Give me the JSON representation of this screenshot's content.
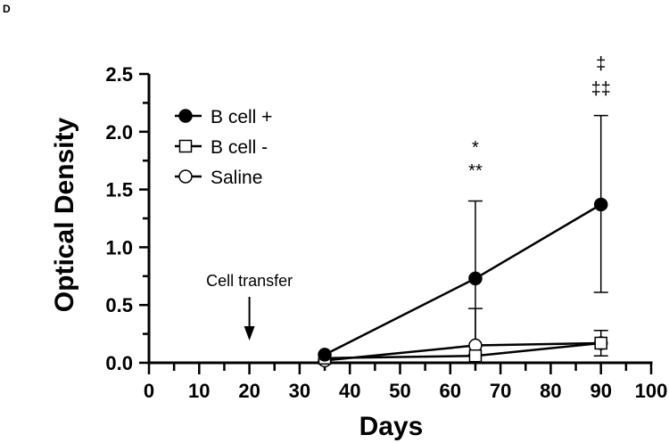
{
  "panel_label": "D",
  "chart_data": {
    "type": "line",
    "xlabel": "Days",
    "ylabel": "Optical Density",
    "xlim": [
      0,
      100
    ],
    "ylim": [
      0,
      2.5
    ],
    "xticks": [
      "0",
      "10",
      "20",
      "30",
      "40",
      "50",
      "60",
      "70",
      "80",
      "90",
      "100"
    ],
    "yticks": [
      "0.0",
      "0.5",
      "1.0",
      "1.5",
      "2.0",
      "2.5"
    ],
    "xtick_values": [
      0,
      10,
      20,
      30,
      40,
      50,
      60,
      70,
      80,
      90,
      100
    ],
    "ytick_values": [
      0,
      0.5,
      1.0,
      1.5,
      2.0,
      2.5
    ],
    "x": [
      35,
      65,
      90
    ],
    "series": [
      {
        "name": "B cell +",
        "marker": "filled-circle",
        "values": [
          0.07,
          0.73,
          1.37
        ],
        "error_upper": [
          0.07,
          1.4,
          2.14
        ],
        "error_lower": [
          0.07,
          0.07,
          0.61
        ]
      },
      {
        "name": "B cell -",
        "marker": "open-square",
        "values": [
          0.04,
          0.06,
          0.17
        ],
        "error_upper": [
          0.04,
          0.06,
          0.28
        ],
        "error_lower": [
          0.04,
          0.06,
          0.06
        ]
      },
      {
        "name": "Saline",
        "marker": "open-circle",
        "values": [
          0.02,
          0.15,
          0.17
        ],
        "error_upper": [
          0.02,
          0.47,
          0.17
        ],
        "error_lower": [
          0.02,
          0.15,
          0.17
        ]
      }
    ],
    "legend_position": "top-left",
    "annotations": [
      {
        "text": "Cell transfer",
        "x": 20,
        "arrow": true
      },
      {
        "text": "*",
        "x": 65
      },
      {
        "text": "**",
        "x": 65
      },
      {
        "text": "‡",
        "x": 90
      },
      {
        "text": "‡‡",
        "x": 90
      }
    ],
    "grid": false
  }
}
